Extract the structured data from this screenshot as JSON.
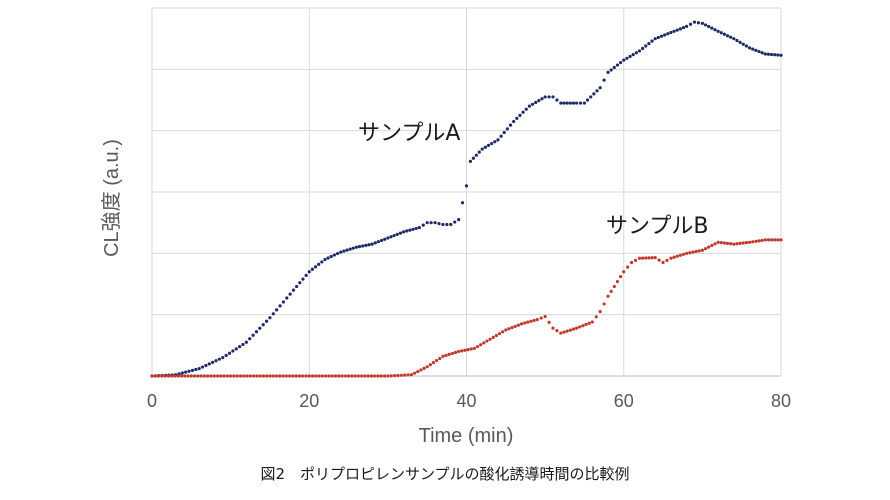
{
  "chart_data": {
    "type": "scatter",
    "xlabel": "Time (min)",
    "ylabel": "CL強度 (a.u.)",
    "xlim": [
      0,
      80
    ],
    "ylim": [
      0,
      6
    ],
    "xticks": [
      "0",
      "20",
      "40",
      "60",
      "80"
    ],
    "grid": true,
    "series": [
      {
        "name": "サンプルA",
        "color": "#1f2a66",
        "points": [
          [
            0,
            0
          ],
          [
            3,
            0.02
          ],
          [
            6,
            0.12
          ],
          [
            9,
            0.3
          ],
          [
            12,
            0.55
          ],
          [
            15,
            0.95
          ],
          [
            18,
            1.4
          ],
          [
            20,
            1.7
          ],
          [
            22,
            1.9
          ],
          [
            24,
            2.02
          ],
          [
            26,
            2.1
          ],
          [
            28,
            2.15
          ],
          [
            30,
            2.25
          ],
          [
            32,
            2.35
          ],
          [
            34,
            2.42
          ],
          [
            35,
            2.5
          ],
          [
            36,
            2.5
          ],
          [
            37,
            2.47
          ],
          [
            38,
            2.47
          ],
          [
            39,
            2.55
          ],
          [
            40,
            3.1
          ],
          [
            40.5,
            3.5
          ],
          [
            42,
            3.7
          ],
          [
            44,
            3.85
          ],
          [
            46,
            4.15
          ],
          [
            48,
            4.4
          ],
          [
            50,
            4.55
          ],
          [
            51,
            4.55
          ],
          [
            52,
            4.45
          ],
          [
            54,
            4.45
          ],
          [
            55,
            4.45
          ],
          [
            57,
            4.7
          ],
          [
            58,
            4.95
          ],
          [
            60,
            5.15
          ],
          [
            62,
            5.3
          ],
          [
            64,
            5.5
          ],
          [
            66,
            5.6
          ],
          [
            68,
            5.7
          ],
          [
            69,
            5.77
          ],
          [
            70,
            5.75
          ],
          [
            72,
            5.62
          ],
          [
            74,
            5.5
          ],
          [
            76,
            5.35
          ],
          [
            78,
            5.25
          ],
          [
            80,
            5.23
          ]
        ]
      },
      {
        "name": "サンプルB",
        "color": "#c0392b",
        "points": [
          [
            0,
            0
          ],
          [
            10,
            0
          ],
          [
            20,
            0
          ],
          [
            30,
            0
          ],
          [
            33,
            0.02
          ],
          [
            35,
            0.15
          ],
          [
            37,
            0.32
          ],
          [
            39,
            0.4
          ],
          [
            41,
            0.45
          ],
          [
            43,
            0.6
          ],
          [
            45,
            0.75
          ],
          [
            47,
            0.85
          ],
          [
            49,
            0.92
          ],
          [
            50,
            0.97
          ],
          [
            51,
            0.78
          ],
          [
            52,
            0.7
          ],
          [
            54,
            0.78
          ],
          [
            56,
            0.88
          ],
          [
            57,
            1.05
          ],
          [
            58,
            1.3
          ],
          [
            60,
            1.7
          ],
          [
            61,
            1.85
          ],
          [
            62,
            1.92
          ],
          [
            64,
            1.93
          ],
          [
            65,
            1.85
          ],
          [
            66,
            1.92
          ],
          [
            68,
            2.0
          ],
          [
            70,
            2.05
          ],
          [
            72,
            2.18
          ],
          [
            74,
            2.15
          ],
          [
            76,
            2.18
          ],
          [
            78,
            2.22
          ],
          [
            80,
            2.22
          ]
        ]
      }
    ]
  },
  "caption": "図2　ポリプロピレンサンプルの酸化誘導時間の比較例"
}
